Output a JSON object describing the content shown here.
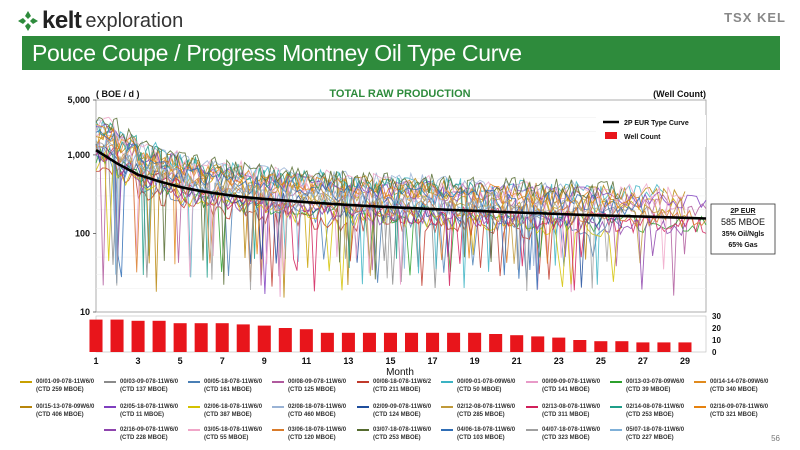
{
  "header": {
    "logo_text_bold": "kelt",
    "logo_text_regular": "exploration",
    "exchange": "TSX KEL",
    "title": "Pouce Coupe / Progress Montney Oil Type Curve"
  },
  "page_number": "56",
  "colors": {
    "brand_green": "#2e8b3c",
    "type_curve": "#000000",
    "well_count": "#e8151b"
  },
  "chart_data": {
    "type": "line",
    "title": "TOTAL RAW PRODUCTION",
    "left_unit": "( BOE / d )",
    "right_unit": "(Well Count)",
    "xlabel": "Month",
    "x_ticks": [
      "1",
      "3",
      "5",
      "7",
      "9",
      "11",
      "13",
      "15",
      "17",
      "19",
      "21",
      "23",
      "25",
      "27",
      "29"
    ],
    "y_scale": "log",
    "ylim": [
      10,
      5000
    ],
    "y_ticks": [
      "10",
      "100",
      "1,000",
      "5,000"
    ],
    "y2lim": [
      0,
      30
    ],
    "y2_ticks": [
      "0",
      "10",
      "20",
      "30"
    ],
    "legend_position": "top-right",
    "legend_entries": [
      "2P EUR Type Curve",
      "Well Count"
    ],
    "annotation": {
      "title": "2P EUR",
      "value": "585 MBOE",
      "line2": "35% Oil/Ngls",
      "line3": "65% Gas"
    },
    "type_curve": {
      "name": "2P EUR Type Curve",
      "x": [
        1,
        2,
        3,
        4,
        5,
        6,
        7,
        8,
        9,
        10,
        11,
        12,
        13,
        14,
        15,
        16,
        17,
        18,
        19,
        20,
        21,
        22,
        23,
        24,
        25,
        26,
        27,
        28,
        29,
        30
      ],
      "values": [
        1150,
        780,
        560,
        460,
        390,
        345,
        315,
        290,
        275,
        262,
        250,
        240,
        231,
        223,
        216,
        210,
        204,
        199,
        194,
        189,
        185,
        181,
        177,
        173,
        170,
        167,
        164,
        161,
        158,
        155
      ]
    },
    "well_count": {
      "name": "Well Count",
      "x": [
        1,
        2,
        3,
        4,
        5,
        6,
        7,
        8,
        9,
        10,
        11,
        12,
        13,
        14,
        15,
        16,
        17,
        18,
        19,
        20,
        21,
        22,
        23,
        24,
        25,
        26,
        27,
        28,
        29
      ],
      "values": [
        27,
        27,
        26,
        26,
        24,
        24,
        24,
        23,
        22,
        20,
        19,
        16,
        16,
        16,
        16,
        16,
        16,
        16,
        16,
        15,
        14,
        13,
        12,
        10,
        9,
        9,
        8,
        8,
        8
      ]
    },
    "wells": [
      {
        "name": "00/01-09-078-11W6/0",
        "ctd": "(CTD 259 MBOE)",
        "color": "#c8a000"
      },
      {
        "name": "00/03-09-078-11W6/0",
        "ctd": "(CTD 137 MBOE)",
        "color": "#8a8a8a"
      },
      {
        "name": "00/05-18-078-11W6/0",
        "ctd": "(CTD 161 MBOE)",
        "color": "#4a7fb5"
      },
      {
        "name": "00/08-09-078-11W6/0",
        "ctd": "(CTD 125 MBOE)",
        "color": "#b05a9e"
      },
      {
        "name": "00/08-18-078-11W6/2",
        "ctd": "(CTD 211 MBOE)",
        "color": "#c0392b"
      },
      {
        "name": "00/09-01-078-09W6/0",
        "ctd": "(CTD 50 MBOE)",
        "color": "#3bb3c3"
      },
      {
        "name": "00/09-09-078-11W6/0",
        "ctd": "(CTD 141 MBOE)",
        "color": "#e89ac8"
      },
      {
        "name": "00/13-03-078-09W6/0",
        "ctd": "(CTD 39 MBOE)",
        "color": "#2ca02c"
      },
      {
        "name": "00/14-14-078-09W6/0",
        "ctd": "(CTD 340 MBOE)",
        "color": "#e08a1e"
      },
      {
        "name": "00/15-13-078-09W6/0",
        "ctd": "(CTD 406 MBOE)",
        "color": "#b8860b"
      },
      {
        "name": "02/05-18-078-11W6/0",
        "ctd": "(CTD 11 MBOE)",
        "color": "#7f3fbf"
      },
      {
        "name": "02/06-18-078-11W6/0",
        "ctd": "(CTD 387 MBOE)",
        "color": "#d4c200"
      },
      {
        "name": "02/08-18-078-11W6/0",
        "ctd": "(CTD 460 MBOE)",
        "color": "#9ab3d5"
      },
      {
        "name": "02/09-09-078-11W6/0",
        "ctd": "(CTD 124 MBOE)",
        "color": "#1f4e9c"
      },
      {
        "name": "02/12-08-078-11W6/0",
        "ctd": "(CTD 285 MBOE)",
        "color": "#c09a3a"
      },
      {
        "name": "02/13-08-078-11W6/0",
        "ctd": "(CTD 311 MBOE)",
        "color": "#d11f5a"
      },
      {
        "name": "02/14-08-078-11W6/0",
        "ctd": "(CTD 253 MBOE)",
        "color": "#1f9e89"
      },
      {
        "name": "02/16-09-078-11W6/0",
        "ctd": "(CTD 321 MBOE)",
        "color": "#e6820e"
      },
      {
        "name": "02/16-09-078-11W6/0",
        "ctd": "(CTD 228 MBOE)",
        "color": "#8e44ad"
      },
      {
        "name": "03/05-18-078-11W6/0",
        "ctd": "(CTD 55 MBOE)",
        "color": "#f0a6c8"
      },
      {
        "name": "03/06-18-078-11W6/0",
        "ctd": "(CTD 120 MBOE)",
        "color": "#d97b2a"
      },
      {
        "name": "03/07-18-078-11W6/0",
        "ctd": "(CTD 253 MBOE)",
        "color": "#556b2f"
      },
      {
        "name": "04/06-18-078-11W6/0",
        "ctd": "(CTD 103 MBOE)",
        "color": "#2f6db5"
      },
      {
        "name": "04/07-18-078-11W6/0",
        "ctd": "(CTD 323 MBOE)",
        "color": "#a0a0a0"
      },
      {
        "name": "05/07-18-078-11W6/0",
        "ctd": "(CTD 227 MBOE)",
        "color": "#7fb0d8"
      }
    ]
  }
}
